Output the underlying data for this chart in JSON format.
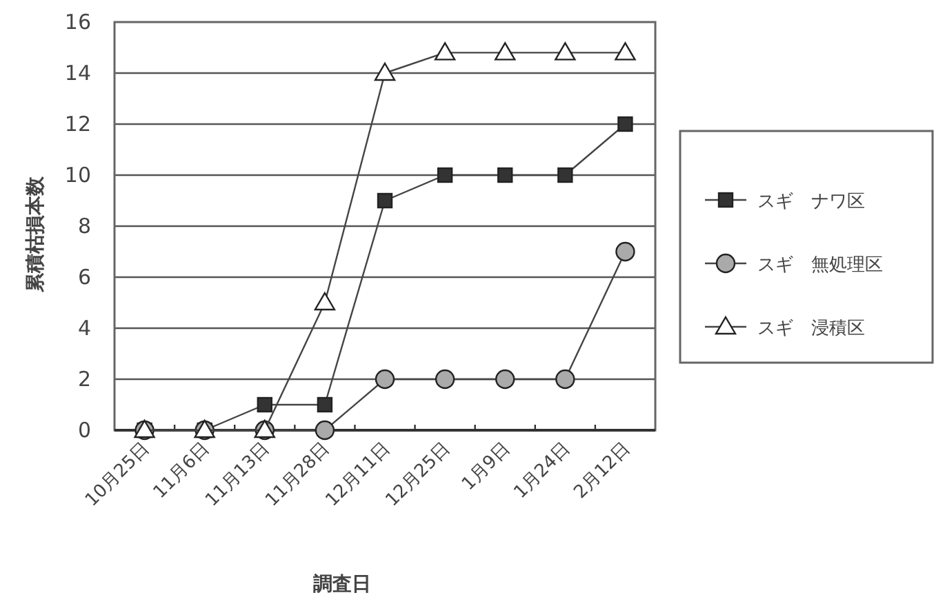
{
  "chart_data": {
    "type": "line",
    "ylabel": "累積枯損本数",
    "xlabel": "調査日",
    "categories": [
      "10月25日",
      "11月6日",
      "11月13日",
      "11月28日",
      "12月11日",
      "12月25日",
      "1月9日",
      "1月24日",
      "2月12日"
    ],
    "series": [
      {
        "name": "スギ　ナワ区",
        "color": "#333333",
        "marker": "square",
        "values": [
          0,
          0,
          1,
          1,
          9,
          10,
          10,
          10,
          12
        ]
      },
      {
        "name": "スギ　無処理区",
        "color": "#aaaaaa",
        "marker": "circle",
        "values": [
          0,
          0,
          0,
          0,
          2,
          2,
          2,
          2,
          7
        ]
      },
      {
        "name": "スギ　浸積区",
        "color": "#ffffff",
        "marker": "triangle",
        "values": [
          0,
          0,
          0,
          5,
          14,
          14.8,
          14.8,
          14.8,
          14.8
        ]
      }
    ],
    "ylim": [
      0,
      16
    ],
    "yticks": [
      0,
      2,
      4,
      6,
      8,
      10,
      12,
      14,
      16
    ],
    "grid": "y",
    "legend": "right",
    "line_style": "solid"
  }
}
